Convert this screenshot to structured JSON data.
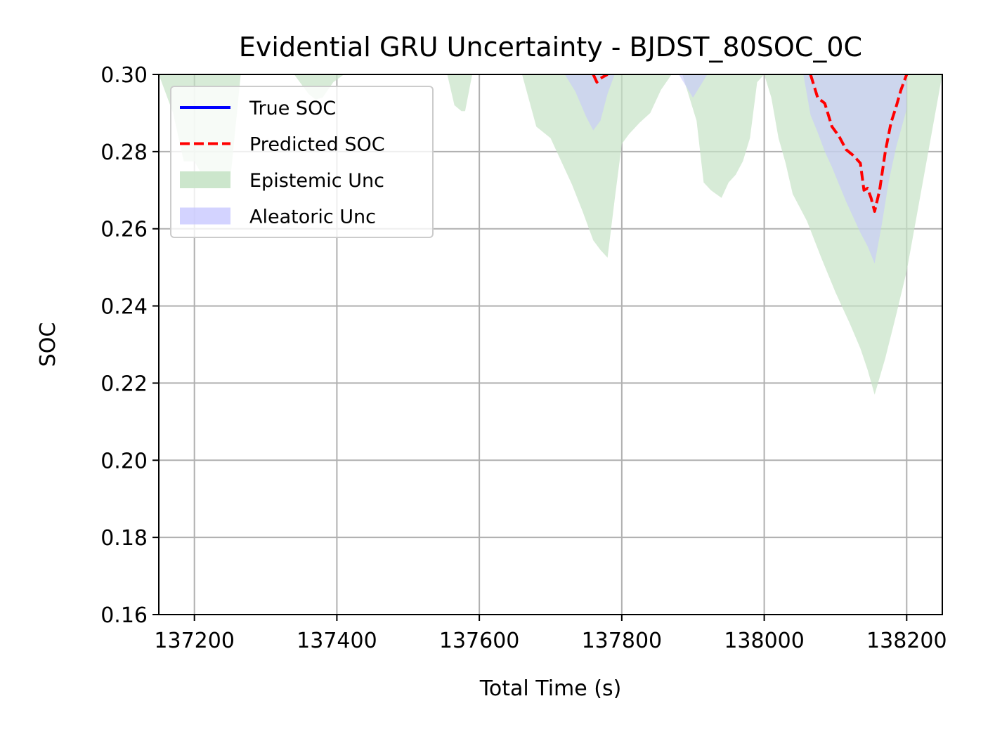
{
  "chart_data": {
    "type": "line",
    "title": "Evidential GRU Uncertainty - BJDST_80SOC_0C",
    "xlabel": "Total Time (s)",
    "ylabel": "SOC",
    "xlim": [
      137150,
      138250
    ],
    "ylim": [
      0.16,
      0.3
    ],
    "xticks": [
      137200,
      137400,
      137600,
      137800,
      138000,
      138200
    ],
    "yticks": [
      "0.16",
      "0.18",
      "0.20",
      "0.22",
      "0.24",
      "0.26",
      "0.28",
      "0.30"
    ],
    "grid": true,
    "legend_position": "top-left",
    "series": [
      {
        "name": "True SOC",
        "style": "solid",
        "color": "#0000ff",
        "x": [],
        "y": []
      },
      {
        "name": "Predicted SOC",
        "style": "dashed",
        "color": "#ff0000",
        "x": [
          137760,
          137765,
          137770,
          137775,
          137780,
          138065,
          138075,
          138085,
          138095,
          138105,
          138115,
          138125,
          138135,
          138140,
          138145,
          138150,
          138155,
          138162,
          138170,
          138178,
          138185,
          138192,
          138200
        ],
        "y": [
          0.3,
          0.298,
          0.299,
          0.2995,
          0.3,
          0.3,
          0.294,
          0.2925,
          0.2865,
          0.284,
          0.2805,
          0.279,
          0.277,
          0.27,
          0.2705,
          0.268,
          0.2645,
          0.27,
          0.28,
          0.2875,
          0.2915,
          0.296,
          0.3
        ]
      }
    ],
    "bands": [
      {
        "name": "Epistemic Unc",
        "color": "#c6e3c6",
        "opacity": 0.7,
        "x": [
          137150,
          137170,
          137185,
          137200,
          137215,
          137230,
          137250,
          137265,
          137285,
          137340,
          137360,
          137370,
          137380,
          137395,
          137410,
          137555,
          137565,
          137575,
          137580,
          137590,
          137600,
          137610,
          137620,
          137650,
          137660,
          137680,
          137700,
          137715,
          137730,
          137745,
          137760,
          137770,
          137780,
          137790,
          137800,
          137810,
          137825,
          137840,
          137855,
          137870,
          137885,
          137905,
          137915,
          137925,
          137940,
          137950,
          137960,
          137970,
          137980,
          137990,
          138000,
          138010,
          138020,
          138030,
          138040,
          138060,
          138080,
          138100,
          138120,
          138135,
          138145,
          138155,
          138170,
          138185,
          138200,
          138250
        ],
        "lower": [
          0.3,
          0.29,
          0.2775,
          0.2775,
          0.2725,
          0.2725,
          0.272,
          0.3,
          0.3,
          0.3,
          0.295,
          0.2935,
          0.294,
          0.298,
          0.3,
          0.3,
          0.292,
          0.2905,
          0.2905,
          0.3,
          0.3,
          0.3,
          0.3,
          0.3,
          0.3,
          0.2865,
          0.2835,
          0.2775,
          0.2715,
          0.2645,
          0.257,
          0.2545,
          0.2525,
          0.2675,
          0.282,
          0.2845,
          0.2875,
          0.29,
          0.296,
          0.3,
          0.3,
          0.288,
          0.272,
          0.27,
          0.268,
          0.272,
          0.274,
          0.2775,
          0.2835,
          0.298,
          0.3,
          0.294,
          0.2835,
          0.277,
          0.269,
          0.262,
          0.2525,
          0.2435,
          0.2355,
          0.229,
          0.2235,
          0.217,
          0.2265,
          0.2375,
          0.249,
          0.3
        ],
        "upper": [
          0.3,
          0.3,
          0.3,
          0.3,
          0.3,
          0.3,
          0.3,
          0.3,
          0.3,
          0.3,
          0.3,
          0.3,
          0.3,
          0.3,
          0.3,
          0.3,
          0.3,
          0.3,
          0.3,
          0.3,
          0.3,
          0.3,
          0.3,
          0.3,
          0.3,
          0.3,
          0.3,
          0.3,
          0.3,
          0.3,
          0.3,
          0.3,
          0.3,
          0.3,
          0.3,
          0.3,
          0.3,
          0.3,
          0.3,
          0.3,
          0.3,
          0.3,
          0.3,
          0.3,
          0.3,
          0.3,
          0.3,
          0.3,
          0.3,
          0.3,
          0.3,
          0.3,
          0.3,
          0.3,
          0.3,
          0.3,
          0.3,
          0.3,
          0.3,
          0.3,
          0.3,
          0.3,
          0.3,
          0.3,
          0.3,
          0.3
        ]
      },
      {
        "name": "Aleatoric Unc",
        "color": "#c4c4ff",
        "opacity": 0.55,
        "x": [
          137720,
          137735,
          137750,
          137760,
          137770,
          137780,
          137790,
          137800,
          137880,
          137890,
          137900,
          137910,
          137920,
          138055,
          138065,
          138075,
          138085,
          138095,
          138105,
          138115,
          138125,
          138135,
          138145,
          138155,
          138165,
          138175,
          138185,
          138200
        ],
        "lower": [
          0.3,
          0.2955,
          0.289,
          0.2855,
          0.288,
          0.295,
          0.3,
          0.3,
          0.3,
          0.297,
          0.294,
          0.297,
          0.3,
          0.3,
          0.2895,
          0.285,
          0.28,
          0.276,
          0.2715,
          0.267,
          0.263,
          0.259,
          0.2555,
          0.251,
          0.261,
          0.2725,
          0.281,
          0.291
        ],
        "upper": [
          0.3,
          0.3,
          0.3,
          0.3,
          0.3,
          0.3,
          0.3,
          0.3,
          0.3,
          0.3,
          0.3,
          0.3,
          0.3,
          0.3,
          0.3,
          0.3,
          0.3,
          0.3,
          0.3,
          0.3,
          0.3,
          0.3,
          0.3,
          0.3,
          0.3,
          0.3,
          0.3,
          0.3
        ]
      }
    ]
  }
}
